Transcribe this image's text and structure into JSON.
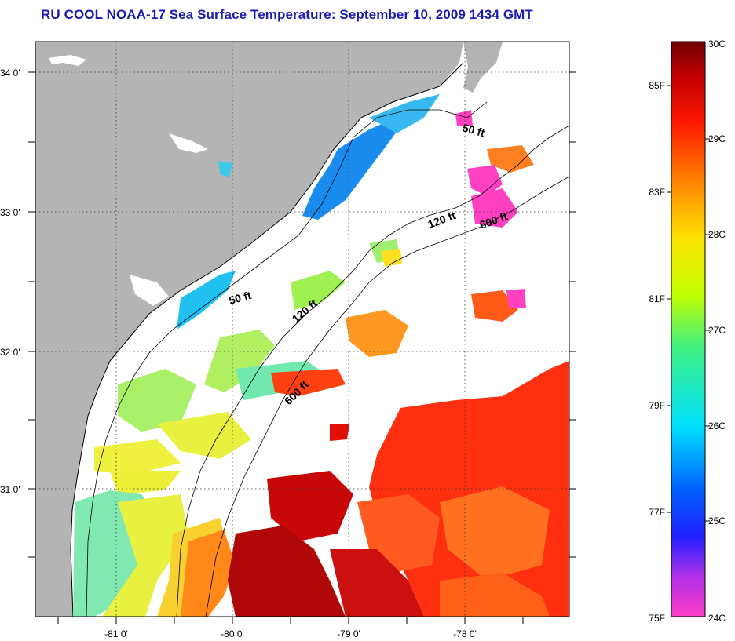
{
  "title": "RU COOL  NOAA-17  Sea Surface Temperature:  September 10, 2009 1434 GMT",
  "map": {
    "lat_range": [
      30.1,
      34.2
    ],
    "lon_range": [
      -81.7,
      -77.1
    ],
    "lat_ticks": [
      "34 0'",
      "33 0'",
      "32 0'",
      "31 0'"
    ],
    "lon_ticks": [
      "-81 0'",
      "-80 0'",
      "-79 0'",
      "-78 0'"
    ],
    "grid": "dotted",
    "land_color": "#b4b4b4",
    "ocean_no_data_color": "#ffffff",
    "contours": [
      {
        "depth": "50 ft",
        "labels": [
          "50 ft",
          "50 ft"
        ]
      },
      {
        "depth": "120 ft",
        "labels": [
          "120 ft",
          "120 ft"
        ]
      },
      {
        "depth": "600 ft",
        "labels": [
          "600 ft",
          "600 ft"
        ]
      }
    ]
  },
  "colorbar": {
    "fahrenheit_labels": [
      "85F",
      "83F",
      "81F",
      "79F",
      "77F",
      "75F"
    ],
    "celsius_labels": [
      "30C",
      "29C",
      "28C",
      "27C",
      "26C",
      "25C",
      "24C"
    ],
    "range_c": [
      24,
      30
    ],
    "colors": [
      "#ff3cc8",
      "#9a2cf0",
      "#1010ff",
      "#0090ff",
      "#00f0ff",
      "#60f060",
      "#ffff00",
      "#ffa000",
      "#ff2000",
      "#c00000",
      "#780000"
    ]
  }
}
